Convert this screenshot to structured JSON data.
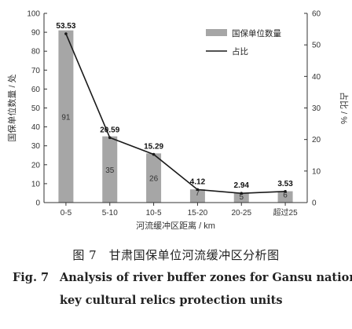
{
  "chart_data": {
    "type": "bar+line",
    "categories": [
      "0-5",
      "5-10",
      "10-5",
      "15-20",
      "20-25",
      "超过25"
    ],
    "series": [
      {
        "name": "国保单位数量",
        "type": "bar",
        "axis": "left",
        "values": [
          91,
          35,
          26,
          7,
          5,
          6
        ],
        "color": "#a6a6a6"
      },
      {
        "name": "占比",
        "type": "line",
        "axis": "right",
        "values": [
          53.53,
          20.59,
          15.29,
          4.12,
          2.94,
          3.53
        ],
        "color": "#1a1a1a"
      }
    ],
    "bar_labels": [
      "91",
      "35",
      "26",
      "7",
      "5",
      "6"
    ],
    "line_labels": [
      "53.53",
      "20.59",
      "15.29",
      "4.12",
      "2.94",
      "3.53"
    ],
    "xlabel": "河流缓冲区距离 / km",
    "ylabel_left": "国保单位数量 / 处",
    "ylabel_right": "占比 / %",
    "ylim_left": [
      0,
      100
    ],
    "yticks_left": [
      "0",
      "10",
      "20",
      "30",
      "40",
      "50",
      "60",
      "70",
      "80",
      "90",
      "100"
    ],
    "ylim_right": [
      0,
      60
    ],
    "yticks_right": [
      "0",
      "10",
      "20",
      "30",
      "40",
      "50",
      "60"
    ],
    "legend": {
      "placement": "top-right",
      "items": [
        "国保单位数量",
        "占比"
      ]
    },
    "grid": false
  },
  "caption": {
    "zh": "图 7　甘肃国保单位河流缓冲区分析图",
    "en_fig": "Fig. 7",
    "en_line1": "Analysis of river buffer zones for Gansu national",
    "en_line2": "key cultural relics protection units"
  }
}
